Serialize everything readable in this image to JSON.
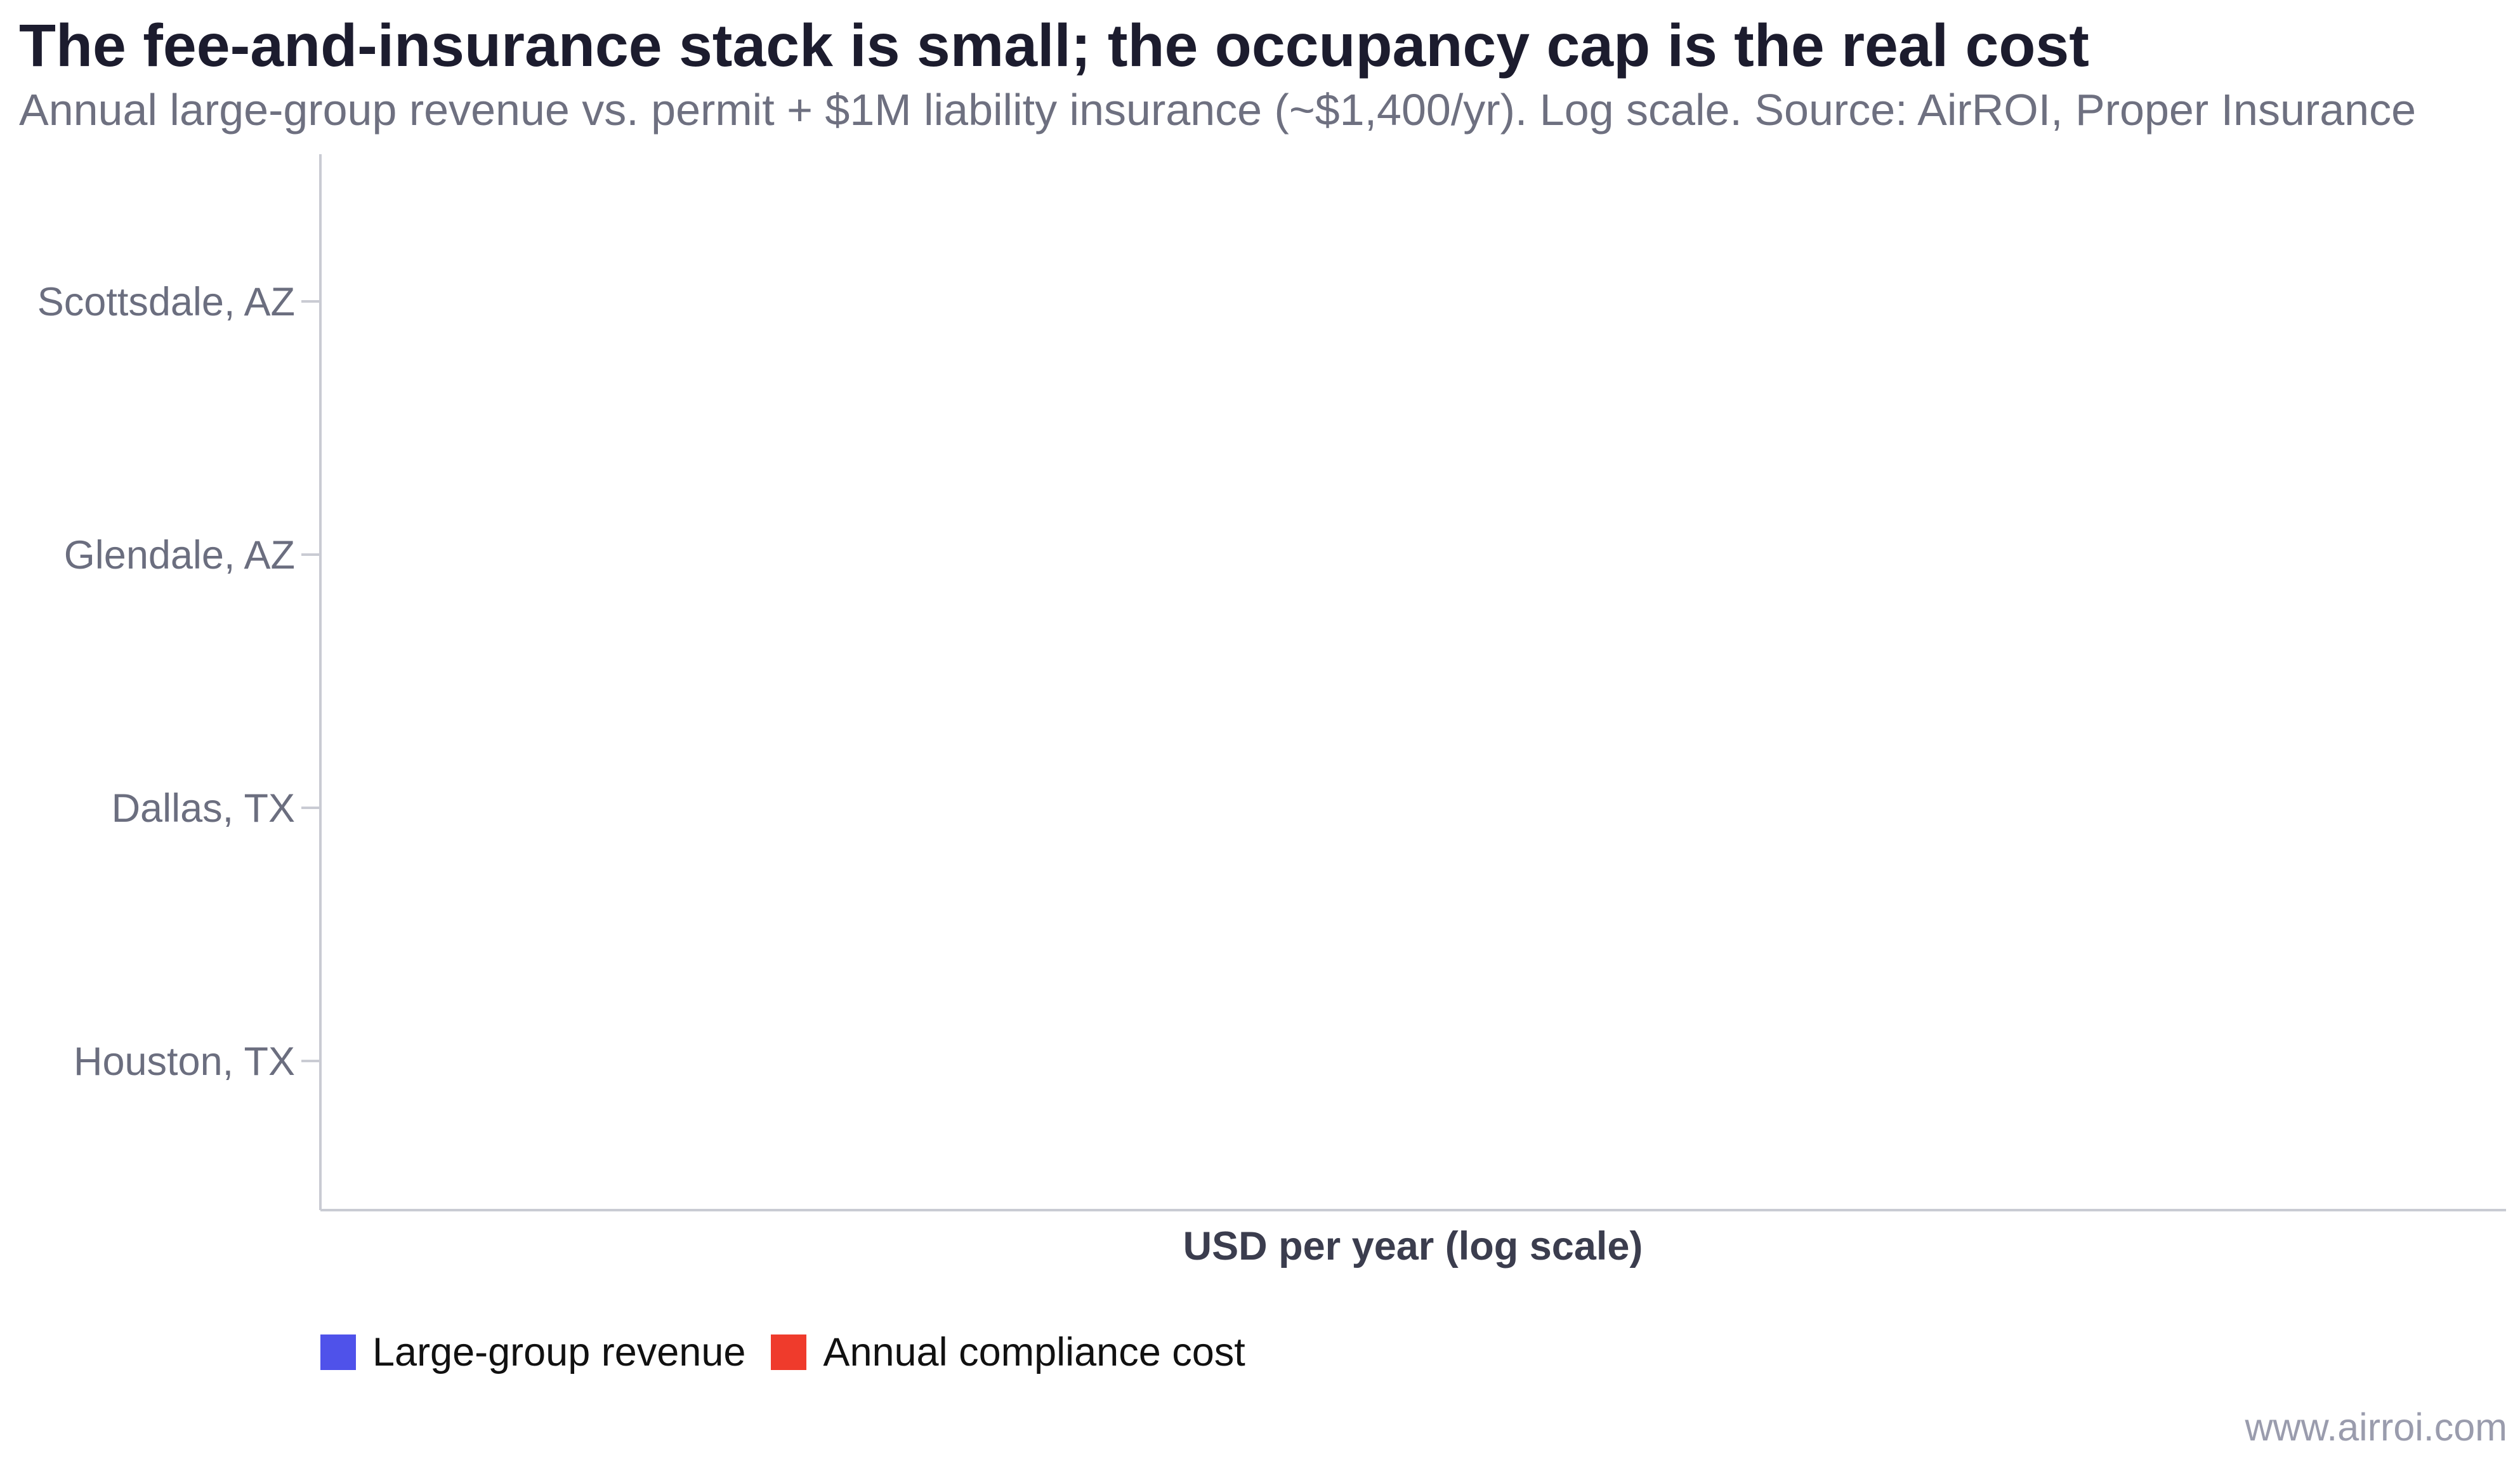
{
  "chart_data": {
    "type": "bar",
    "title": "The fee-and-insurance stack is small; the occupancy cap is the real cost",
    "subtitle": "Annual large-group revenue vs. permit + $1M liability insurance (~$1,400/yr). Log scale. Source: AirROI, Proper Insurance",
    "orientation": "horizontal",
    "xlabel": "USD per year (log scale)",
    "ylabel": "",
    "x_scale": "log",
    "categories": [
      "Scottsdale, AZ",
      "Glendale, AZ",
      "Dallas, TX",
      "Houston, TX"
    ],
    "series": [
      {
        "name": "Large-group revenue",
        "color": "#4f52ea",
        "values": [
          null,
          null,
          null,
          null
        ]
      },
      {
        "name": "Annual compliance cost",
        "color": "#ef3b2c",
        "values": [
          null,
          null,
          null,
          null
        ]
      }
    ],
    "grid": false,
    "legend_position": "bottom-left"
  },
  "watermark": "www.airroi.com"
}
